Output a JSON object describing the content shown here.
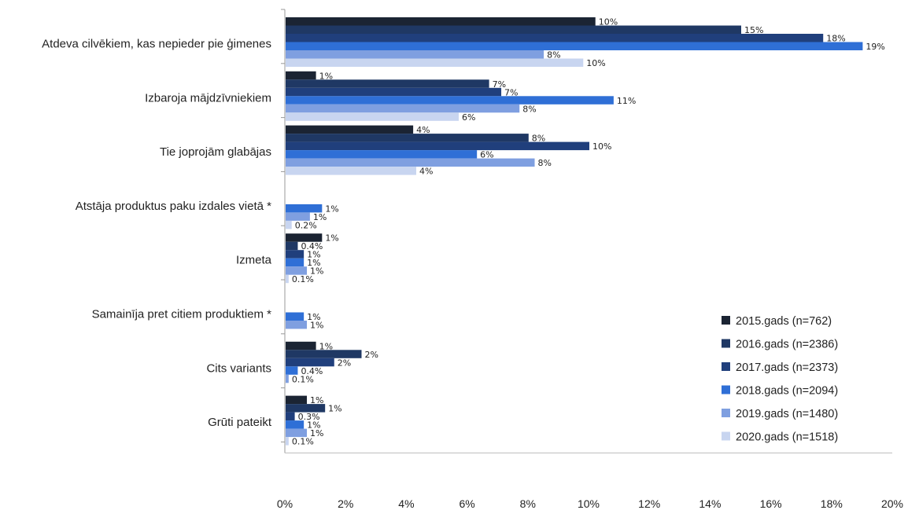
{
  "chart_data": {
    "type": "bar",
    "orientation": "horizontal",
    "categories": [
      "Atdeva cilvēkiem, kas nepieder pie ģimenes",
      "Izbaroja mājdzīvniekiem",
      "Tie joprojām glabājas",
      "Atstāja produktus paku izdales vietā *",
      "Izmeta",
      "Samainīja pret citiem produktiem *",
      "Cits variants",
      "Grūti pateikt"
    ],
    "series": [
      {
        "name": "2015.gads (n=762)",
        "color": "#1b2433",
        "values": [
          10.2,
          1.0,
          4.2,
          null,
          1.2,
          null,
          1.0,
          0.7
        ],
        "labels": [
          "10%",
          "1%",
          "4%",
          "",
          "1%",
          "",
          "1%",
          "1%"
        ]
      },
      {
        "name": "2016.gads (n=2386)",
        "color": "#1f3864",
        "values": [
          15.0,
          6.7,
          8.0,
          null,
          0.4,
          null,
          2.5,
          1.3
        ],
        "labels": [
          "15%",
          "7%",
          "8%",
          "",
          "0.4%",
          "",
          "2%",
          "1%"
        ]
      },
      {
        "name": "2017.gads (n=2373)",
        "color": "#203f7c",
        "values": [
          17.7,
          7.1,
          10.0,
          null,
          0.6,
          null,
          1.6,
          0.3
        ],
        "labels": [
          "18%",
          "7%",
          "10%",
          "",
          "1%",
          "",
          "2%",
          "0.3%"
        ]
      },
      {
        "name": "2018.gads (n=2094)",
        "color": "#2f6fd6",
        "values": [
          19.0,
          10.8,
          6.3,
          1.2,
          0.6,
          0.6,
          0.4,
          0.6
        ],
        "labels": [
          "19%",
          "11%",
          "6%",
          "1%",
          "1%",
          "1%",
          "0.4%",
          "1%"
        ]
      },
      {
        "name": "2019.gads (n=1480)",
        "color": "#7f9fe0",
        "values": [
          8.5,
          7.7,
          8.2,
          0.8,
          0.7,
          0.7,
          0.1,
          0.7
        ],
        "labels": [
          "8%",
          "8%",
          "8%",
          "1%",
          "1%",
          "1%",
          "0.1%",
          "1%"
        ]
      },
      {
        "name": "2020.gads (n=1518)",
        "color": "#c8d5f0",
        "values": [
          9.8,
          5.7,
          4.3,
          0.2,
          0.1,
          null,
          null,
          0.1
        ],
        "labels": [
          "10%",
          "6%",
          "4%",
          "0.2%",
          "0.1%",
          "",
          "",
          "0.1%"
        ]
      }
    ],
    "xlim": [
      0,
      20
    ],
    "xticks": [
      "0%",
      "2%",
      "4%",
      "6%",
      "8%",
      "10%",
      "12%",
      "14%",
      "16%",
      "18%",
      "20%"
    ],
    "legend_position": "right",
    "grid": false
  }
}
